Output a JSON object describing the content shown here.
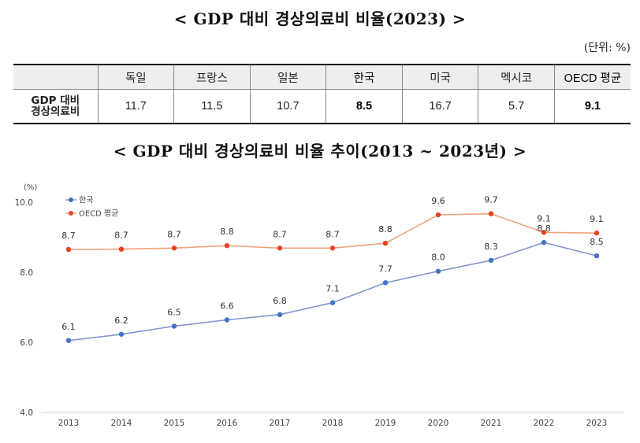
{
  "table_title": "< GDP 대비 경상의료비 비율(2023) >",
  "unit_note": "(단위: %)",
  "table": {
    "corner": "",
    "row_label_line1": "GDP 대비",
    "row_label_line2": "경상의료비",
    "columns": [
      {
        "label": "독일",
        "value": "11.7",
        "emphasis": false
      },
      {
        "label": "프랑스",
        "value": "11.5",
        "emphasis": false
      },
      {
        "label": "일본",
        "value": "10.7",
        "emphasis": false
      },
      {
        "label": "한국",
        "value": "8.5",
        "emphasis": true
      },
      {
        "label": "미국",
        "value": "16.7",
        "emphasis": false
      },
      {
        "label": "멕시코",
        "value": "5.7",
        "emphasis": false
      },
      {
        "label": "OECD 평균",
        "value": "9.1",
        "emphasis": true
      }
    ]
  },
  "chart_title": "< GDP 대비 경상의료비 비율 추이(2013 ~ 2023년) >",
  "chart_data": {
    "type": "line",
    "title": "< GDP 대비 경상의료비 비율 추이(2013 ~ 2023년) >",
    "ylabel": "(%)",
    "xlabel": "",
    "ylim": [
      4.0,
      10.0
    ],
    "yticks": [
      "4.0",
      "6.0",
      "8.0",
      "10.0"
    ],
    "x": [
      "2013",
      "2014",
      "2015",
      "2016",
      "2017",
      "2018",
      "2019",
      "2020",
      "2021",
      "2022",
      "2023"
    ],
    "legend_position": "top-left",
    "grid": false,
    "series": [
      {
        "name": "한국",
        "color": "#4472c4",
        "values": [
          6.05,
          6.23,
          6.46,
          6.64,
          6.79,
          7.13,
          7.7,
          8.03,
          8.34,
          8.85,
          8.47
        ],
        "labels": [
          "6.1",
          "6.2",
          "6.5",
          "6.6",
          "6.8",
          "7.1",
          "7.7",
          "8.0",
          "8.3",
          "8.8",
          "8.5"
        ]
      },
      {
        "name": "OECD 평균",
        "color": "#e8431f",
        "values": [
          8.65,
          8.66,
          8.69,
          8.76,
          8.69,
          8.69,
          8.83,
          9.64,
          9.67,
          9.14,
          9.12
        ],
        "labels": [
          "8.7",
          "8.7",
          "8.7",
          "8.8",
          "8.7",
          "8.7",
          "8.8",
          "9.6",
          "9.7",
          "9.1",
          "9.1"
        ]
      }
    ]
  }
}
